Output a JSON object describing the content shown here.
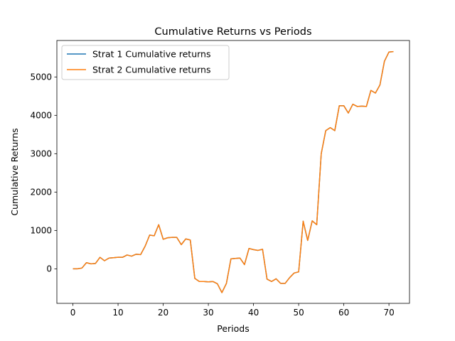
{
  "colors": {
    "series1": "#1f77b4",
    "series2": "#ff7f0e",
    "axis": "#000000",
    "legend_border": "#cccccc"
  },
  "chart_data": {
    "type": "line",
    "title": "Cumulative Returns vs Periods",
    "xlabel": "Periods",
    "ylabel": "Cumulative Returns",
    "xlim": [
      -3.55,
      74.55
    ],
    "ylim": [
      -900,
      5950
    ],
    "xticks": [
      0,
      10,
      20,
      30,
      40,
      50,
      60,
      70
    ],
    "yticks": [
      0,
      1000,
      2000,
      3000,
      4000,
      5000
    ],
    "grid": false,
    "legend_position": "top-left",
    "x": [
      0,
      1,
      2,
      3,
      4,
      5,
      6,
      7,
      8,
      9,
      10,
      11,
      12,
      13,
      14,
      15,
      16,
      17,
      18,
      19,
      20,
      21,
      22,
      23,
      24,
      25,
      26,
      27,
      28,
      29,
      30,
      31,
      32,
      33,
      34,
      35,
      36,
      37,
      38,
      39,
      40,
      41,
      42,
      43,
      44,
      45,
      46,
      47,
      48,
      49,
      50,
      51,
      52,
      53,
      54,
      55,
      56,
      57,
      58,
      59,
      60,
      61,
      62,
      63,
      64,
      65,
      66,
      67,
      68,
      69,
      70,
      71
    ],
    "series": [
      {
        "name": "Strat 1 Cumulative returns",
        "values": [
          0,
          0,
          20,
          160,
          130,
          140,
          300,
          210,
          280,
          290,
          300,
          300,
          360,
          330,
          380,
          370,
          590,
          880,
          860,
          1150,
          770,
          810,
          820,
          820,
          630,
          780,
          750,
          -250,
          -330,
          -330,
          -340,
          -330,
          -390,
          -620,
          -380,
          260,
          270,
          280,
          110,
          530,
          500,
          480,
          510,
          -270,
          -330,
          -260,
          -380,
          -380,
          -230,
          -110,
          -80,
          1240,
          740,
          1250,
          1150,
          3000,
          3600,
          3680,
          3600,
          4250,
          4250,
          4060,
          4290,
          4230,
          4240,
          4230,
          4650,
          4580,
          4790,
          5410,
          5650,
          5660
        ]
      },
      {
        "name": "Strat 2 Cumulative returns",
        "values": [
          0,
          0,
          20,
          160,
          130,
          140,
          300,
          210,
          280,
          290,
          300,
          300,
          360,
          330,
          380,
          370,
          590,
          880,
          860,
          1150,
          770,
          810,
          820,
          820,
          630,
          780,
          750,
          -250,
          -330,
          -330,
          -340,
          -330,
          -390,
          -620,
          -380,
          260,
          270,
          280,
          110,
          530,
          500,
          480,
          510,
          -270,
          -330,
          -260,
          -380,
          -380,
          -230,
          -110,
          -80,
          1240,
          740,
          1250,
          1150,
          3000,
          3600,
          3680,
          3600,
          4250,
          4250,
          4060,
          4290,
          4230,
          4240,
          4230,
          4650,
          4580,
          4790,
          5410,
          5650,
          5660
        ]
      }
    ]
  }
}
